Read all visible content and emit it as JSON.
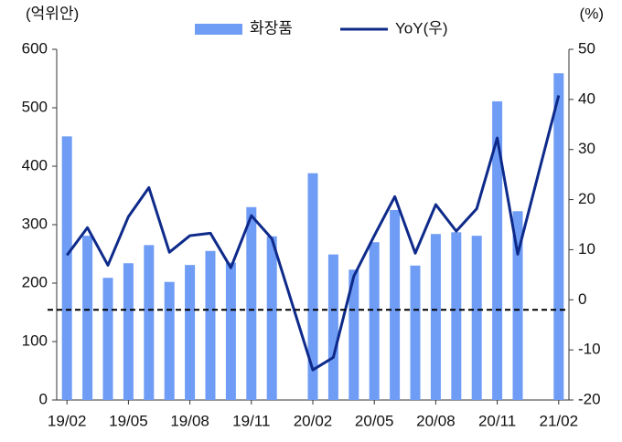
{
  "chart_data": {
    "type": "bar-line",
    "y_label": "(억위안)",
    "y2_label": "(%)",
    "categories": [
      "19/02",
      null,
      null,
      "19/05",
      null,
      null,
      "19/08",
      null,
      null,
      "19/11",
      null,
      null,
      "20/02",
      null,
      null,
      "20/05",
      null,
      null,
      "20/08",
      null,
      null,
      "20/11",
      null,
      null,
      "21/02"
    ],
    "series": [
      {
        "name": "화장품",
        "color": "#6f9cf5",
        "type": "bar",
        "values": [
          451,
          281,
          209,
          234,
          265,
          202,
          231,
          255,
          235,
          330,
          280,
          null,
          388,
          249,
          223,
          270,
          325,
          230,
          284,
          287,
          281,
          511,
          323,
          null,
          559
        ]
      },
      {
        "name": "YoY(우)",
        "color": "#0e2a8a",
        "type": "line",
        "axis": "y2",
        "values": [
          8.9,
          14.4,
          6.9,
          16.6,
          22.4,
          9.5,
          12.8,
          13.3,
          6.4,
          16.8,
          12.2,
          -0.9,
          -14.0,
          -11.5,
          4.7,
          12.8,
          20.6,
          9.3,
          19.0,
          13.7,
          18.2,
          32.3,
          9.1,
          25.0,
          40.8
        ]
      }
    ],
    "ylim": [
      0,
      600
    ],
    "yticks": [
      0,
      100,
      200,
      300,
      400,
      500,
      600
    ],
    "y2lim": [
      -20,
      50
    ],
    "y2ticks": [
      -20,
      -10,
      0,
      10,
      20,
      30,
      40,
      50
    ],
    "reference_line": {
      "value": -2,
      "axis": "y2"
    }
  }
}
